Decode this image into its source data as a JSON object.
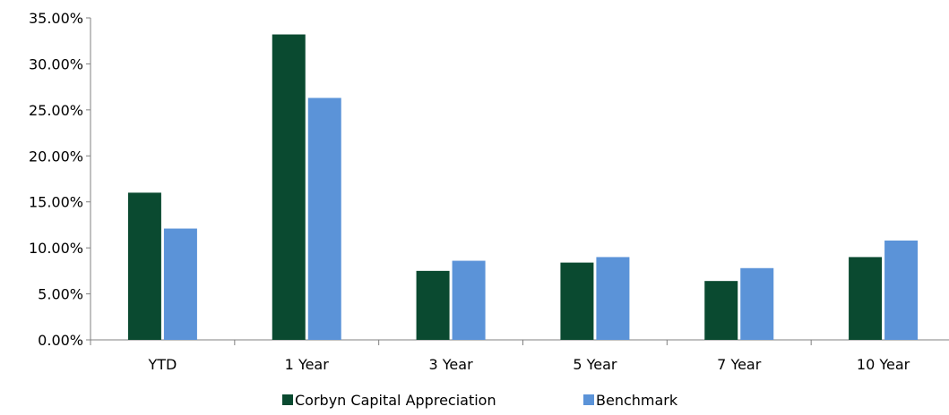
{
  "chart_data": {
    "type": "bar",
    "categories": [
      "YTD",
      "1 Year",
      "3 Year",
      "5 Year",
      "7 Year",
      "10 Year"
    ],
    "series": [
      {
        "name": "Corbyn Capital Appreciation",
        "color": "#0a4a30",
        "values": [
          16.0,
          33.2,
          7.5,
          8.4,
          6.4,
          9.0
        ]
      },
      {
        "name": "Benchmark",
        "color": "#5b93d8",
        "values": [
          12.1,
          26.3,
          8.6,
          9.0,
          7.8,
          10.8
        ]
      }
    ],
    "ylim": [
      0,
      35
    ],
    "yticks": [
      0,
      5,
      10,
      15,
      20,
      25,
      30,
      35
    ],
    "ytick_labels": [
      "0.00%",
      "5.00%",
      "10.00%",
      "15.00%",
      "20.00%",
      "25.00%",
      "30.00%",
      "35.00%"
    ],
    "title": "",
    "xlabel": "",
    "ylabel": "",
    "grid": false,
    "legend_position": "bottom"
  }
}
